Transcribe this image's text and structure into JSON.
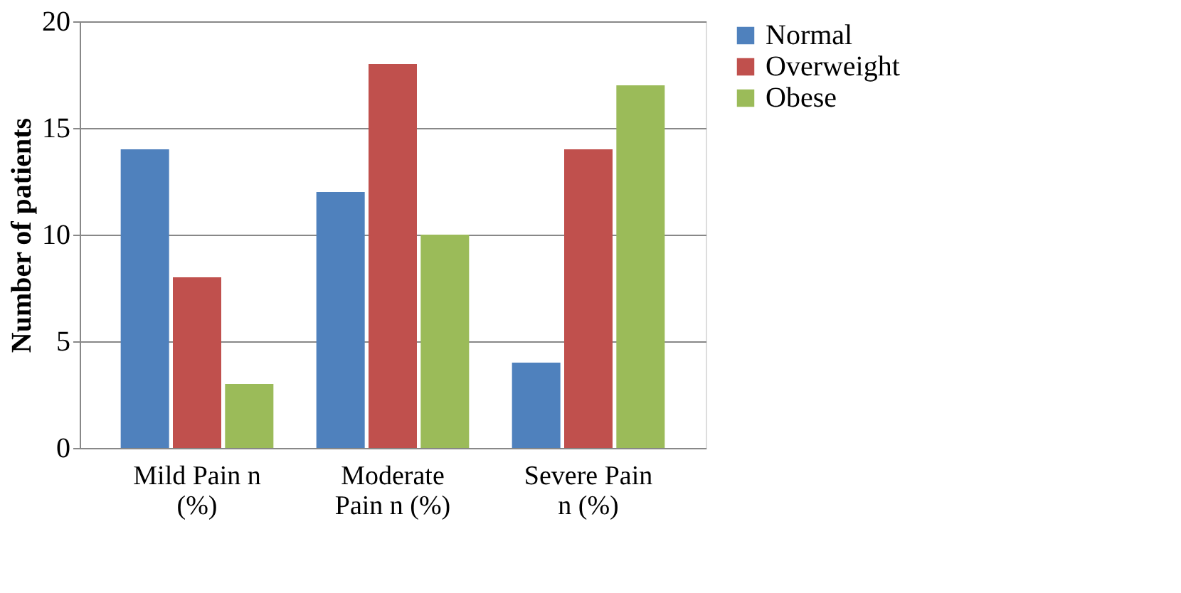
{
  "chart_data": {
    "type": "bar",
    "ylabel": "Number of patients",
    "categories": [
      "Mild Pain n (%)",
      "Moderate Pain n (%)",
      "Severe Pain n (%)"
    ],
    "series": [
      {
        "name": "Normal",
        "color": "#4f81bd",
        "values": [
          14,
          12,
          4
        ]
      },
      {
        "name": "Overweight",
        "color": "#c0504d",
        "values": [
          8,
          18,
          14
        ]
      },
      {
        "name": "Obese",
        "color": "#9bbb59",
        "values": [
          3,
          10,
          17
        ]
      }
    ],
    "ylim": [
      0,
      20
    ],
    "yticks": [
      0,
      5,
      10,
      15,
      20
    ],
    "grid": "y",
    "legend": "right"
  }
}
